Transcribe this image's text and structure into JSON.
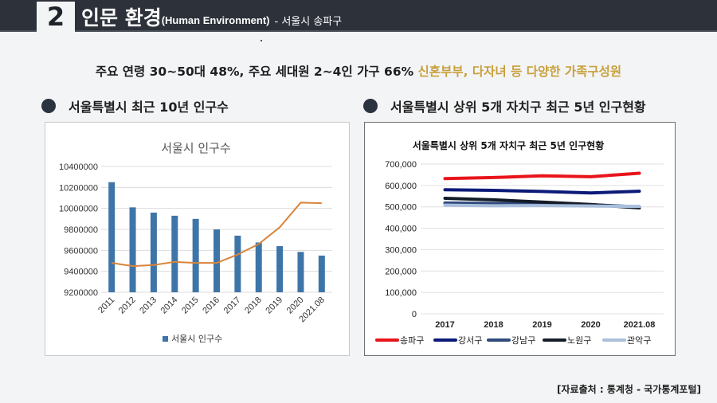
{
  "header": {
    "number": "2",
    "title": "인문 환경",
    "subtitle": "(Human Environment)",
    "location": "- 서울시 송파구"
  },
  "headline": {
    "main": "주요 연령 30~50대 48%, 주요 세대원 2~4인 가구 66%",
    "highlight": "신혼부부, 다자녀 등 다양한 가족구성원"
  },
  "sections": {
    "left_title": "서울특별시 최근 10년 인구수",
    "right_title": "서울특별시 상위 5개 자치구 최근 5년 인구현황"
  },
  "source": "[자료출처 : 통계청 - 국가통계포털]",
  "colors": {
    "bar": "#3e75a8",
    "trend": "#d9843a",
    "accent": "#c8a03c",
    "header_bg": "#2c313a"
  },
  "chart_data": [
    {
      "type": "bar",
      "title": "서울시 인구수",
      "categories": [
        "2011",
        "2012",
        "2013",
        "2014",
        "2015",
        "2016",
        "2017",
        "2018",
        "2019",
        "2020",
        "2021.08"
      ],
      "series": [
        {
          "name": "서울시 인구수",
          "values": [
            10250000,
            10010000,
            9960000,
            9930000,
            9900000,
            9800000,
            9740000,
            9675000,
            9640000,
            9585000,
            9550000
          ]
        }
      ],
      "trend_values": [
        9480000,
        9450000,
        9460000,
        9490000,
        9480000,
        9480000,
        9560000,
        9660000,
        9820000,
        10055000,
        10050000
      ],
      "yticks": [
        "10400000",
        "10200000",
        "10000000",
        "9800000",
        "9600000",
        "9400000",
        "9200000"
      ],
      "ylim": [
        9200000,
        10400000
      ],
      "legend": "서울시 인구수",
      "xlabel": "",
      "ylabel": ""
    },
    {
      "type": "line",
      "title": "서울특별시 상위 5개 자치구 최근 5년 인구현황",
      "categories": [
        "2017",
        "2018",
        "2019",
        "2020",
        "2021.08"
      ],
      "series": [
        {
          "name": "송파구",
          "color": "#e8141c",
          "values": [
            632000,
            637000,
            645000,
            641000,
            657000
          ]
        },
        {
          "name": "강서구",
          "color": "#0b1a78",
          "values": [
            580000,
            577000,
            572000,
            565000,
            573000
          ]
        },
        {
          "name": "강남구",
          "color": "#2f4b7c",
          "values": [
            518000,
            516000,
            513000,
            510000,
            500000
          ]
        },
        {
          "name": "노원구",
          "color": "#151c29",
          "values": [
            540000,
            533000,
            522000,
            511000,
            495000
          ]
        },
        {
          "name": "관악구",
          "color": "#aabfdc",
          "values": [
            508000,
            505000,
            506000,
            504000,
            502000
          ]
        }
      ],
      "yticks": [
        "700,000",
        "600,000",
        "500,000",
        "400,000",
        "300,000",
        "200,000",
        "100,000",
        "0"
      ],
      "ylim": [
        0,
        700000
      ],
      "xlabel": "",
      "ylabel": ""
    }
  ]
}
